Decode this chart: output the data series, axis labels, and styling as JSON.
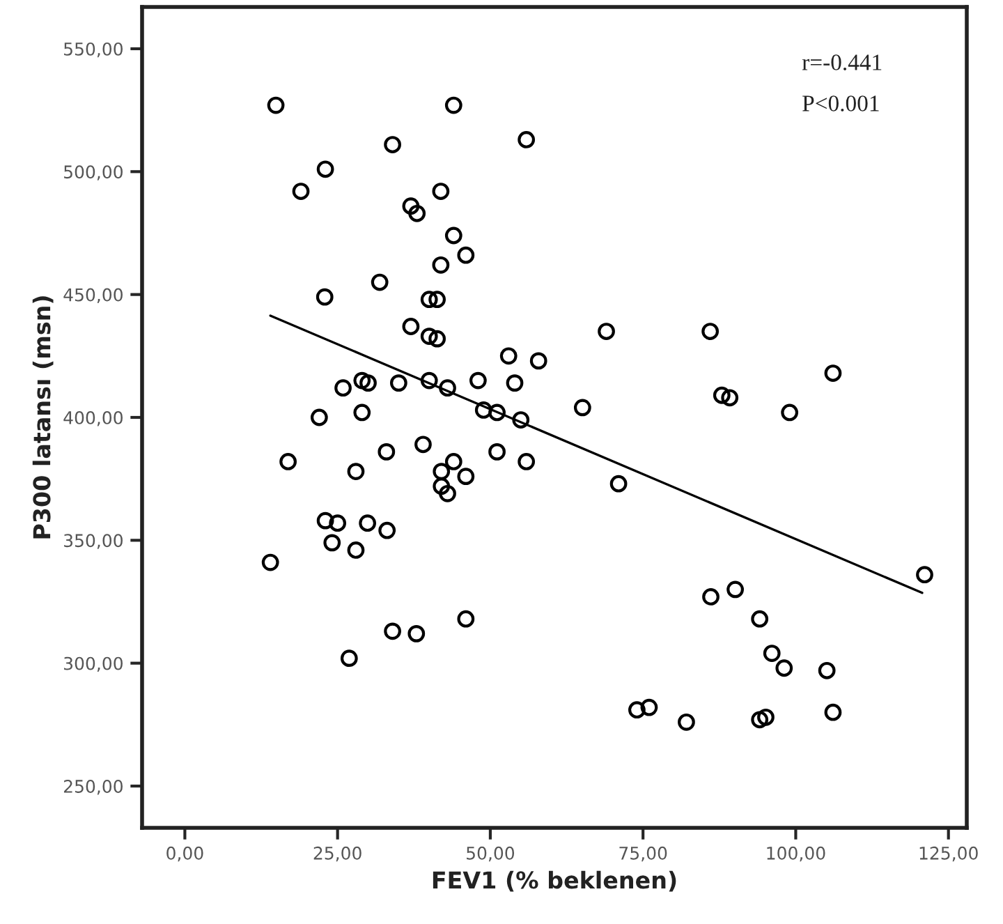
{
  "chart_data": {
    "type": "scatter",
    "xlabel": "FEV1 (% beklenen)",
    "ylabel": "P300 latansı (msn)",
    "annotations": [
      "r=-0.441",
      "P<0.001"
    ],
    "xlim": [
      -7,
      128
    ],
    "ylim": [
      233,
      567
    ],
    "xticks": [
      {
        "value": 0,
        "label": "0,00"
      },
      {
        "value": 25,
        "label": "25,00"
      },
      {
        "value": 50,
        "label": "50,00"
      },
      {
        "value": 75,
        "label": "75,00"
      },
      {
        "value": 100,
        "label": "100,00"
      },
      {
        "value": 125,
        "label": "125,00"
      }
    ],
    "yticks": [
      {
        "value": 250,
        "label": "250,00"
      },
      {
        "value": 300,
        "label": "300,00"
      },
      {
        "value": 350,
        "label": "350,00"
      },
      {
        "value": 400,
        "label": "400,00"
      },
      {
        "value": 450,
        "label": "450,00"
      },
      {
        "value": 500,
        "label": "500,00"
      },
      {
        "value": 550,
        "label": "550,00"
      }
    ],
    "grid": false,
    "legend": false,
    "marker": "circle",
    "series": [
      {
        "color": "#000000",
        "x": [
          14.9,
          44,
          34,
          23,
          19,
          41.9,
          37,
          38,
          44,
          46,
          41.9,
          31.9,
          22.9,
          40,
          41.3,
          37,
          40,
          41.3,
          29,
          30,
          25.9,
          35,
          40,
          43,
          48,
          22,
          29,
          48.9,
          33,
          39,
          16.9,
          44,
          55.9,
          69,
          86,
          53,
          57.9,
          54,
          106.1,
          87.9,
          89.2,
          65.1,
          99,
          51.1,
          55,
          51.1,
          55.9,
          28,
          42,
          46,
          42,
          43,
          23,
          25,
          29.9,
          33.1,
          24.1,
          28,
          14,
          46,
          34,
          37.9,
          26.9,
          71,
          121.1,
          86.1,
          90.1,
          94.1,
          96.1,
          98.1,
          105.1,
          74,
          76,
          82.1,
          94.1,
          95.1,
          106.1
        ],
        "values": [
          527,
          527,
          511,
          501,
          492,
          492,
          486,
          483,
          474,
          466,
          462,
          455,
          449,
          448,
          448,
          437,
          433,
          432,
          415,
          414,
          412,
          414,
          415,
          412,
          415,
          400,
          402,
          403,
          386,
          389,
          382,
          382,
          513,
          435,
          435,
          425,
          423,
          414,
          418,
          409,
          408,
          404,
          402,
          402,
          399,
          386,
          382,
          378,
          378,
          376,
          372,
          369,
          358,
          357,
          357,
          354,
          349,
          346,
          341,
          318,
          313,
          312,
          302,
          373,
          336,
          327,
          330,
          318,
          304,
          298,
          297,
          281,
          282,
          276,
          277,
          278,
          280
        ]
      },
      {
        "type": "line",
        "color": "#000000",
        "x": [
          14,
          120.7
        ],
        "values": [
          441.4,
          328.6
        ],
        "marker": "none",
        "line_style": "solid"
      }
    ]
  }
}
